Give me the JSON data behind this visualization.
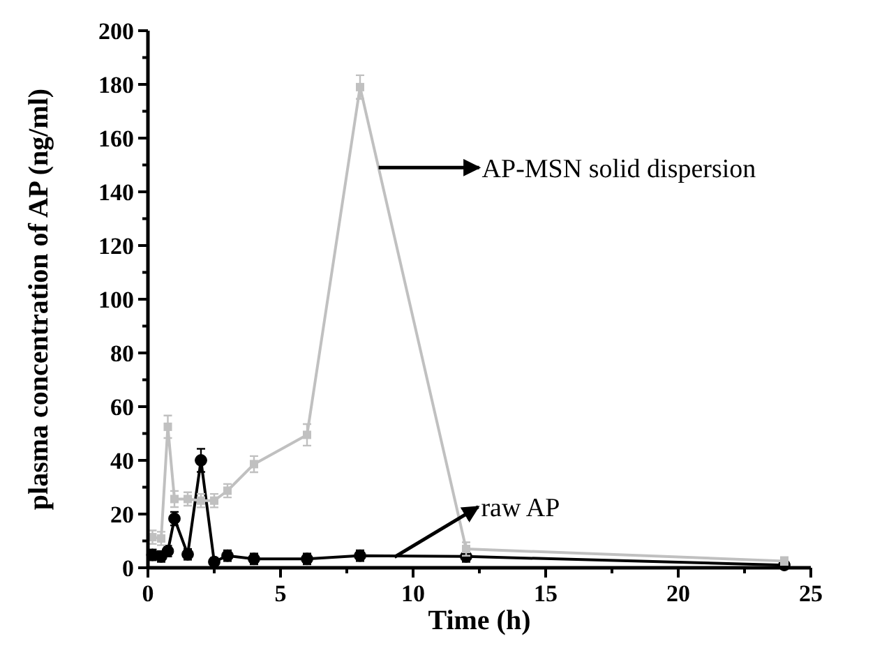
{
  "chart_data": {
    "type": "line",
    "xlabel": "Time (h)",
    "ylabel": "plasma concentration of AP (ng/ml)",
    "xlim": [
      0,
      25
    ],
    "xticks": [
      0,
      {
        "value": 2.5,
        "label": null
      },
      5,
      {
        "value": 7.5,
        "label": null
      },
      10,
      {
        "value": 12.5,
        "label": null
      },
      15,
      {
        "value": 17.5,
        "label": null
      },
      20,
      {
        "value": 22.5,
        "label": null
      },
      25
    ],
    "ylim": [
      0,
      200
    ],
    "yticks": [
      0,
      {
        "value": 10,
        "label": null
      },
      20,
      {
        "value": 30,
        "label": null
      },
      40,
      {
        "value": 50,
        "label": null
      },
      60,
      {
        "value": 70,
        "label": null
      },
      80,
      {
        "value": 90,
        "label": null
      },
      100,
      {
        "value": 110,
        "label": null
      },
      120,
      {
        "value": 130,
        "label": null
      },
      140,
      {
        "value": 150,
        "label": null
      },
      160,
      {
        "value": 170,
        "label": null
      },
      180,
      {
        "value": 190,
        "label": null
      },
      200
    ],
    "grid": false,
    "annotations": [
      "AP-MSN solid dispersion",
      "raw AP"
    ],
    "series": [
      {
        "color": "#c0c0c0",
        "marker": "square",
        "x": [
          0.17,
          0.5,
          0.75,
          1,
          1.5,
          2,
          2.5,
          3,
          4,
          6,
          8,
          12,
          24
        ],
        "values": [
          11.4,
          10.9,
          52.5,
          25.6,
          25.6,
          25,
          25,
          28.7,
          38.6,
          49.5,
          179,
          7,
          2.5
        ],
        "errors": [
          2.5,
          2.5,
          4.2,
          3,
          2.5,
          2.5,
          2.5,
          2.5,
          3,
          4,
          4.4,
          2.5,
          1.5
        ]
      },
      {
        "color": "#000000",
        "marker": "circle",
        "x": [
          0.17,
          0.5,
          0.75,
          1,
          1.5,
          2,
          2.5,
          3,
          4,
          6,
          8,
          12,
          24
        ],
        "values": [
          4.8,
          4.2,
          6.2,
          18.3,
          5,
          40,
          2.2,
          4.5,
          3.3,
          3.3,
          4.5,
          4.2,
          1
        ],
        "errors": [
          2,
          2,
          2,
          2.5,
          2,
          4.3,
          1.5,
          2,
          2,
          2,
          2,
          2,
          null
        ]
      }
    ]
  }
}
